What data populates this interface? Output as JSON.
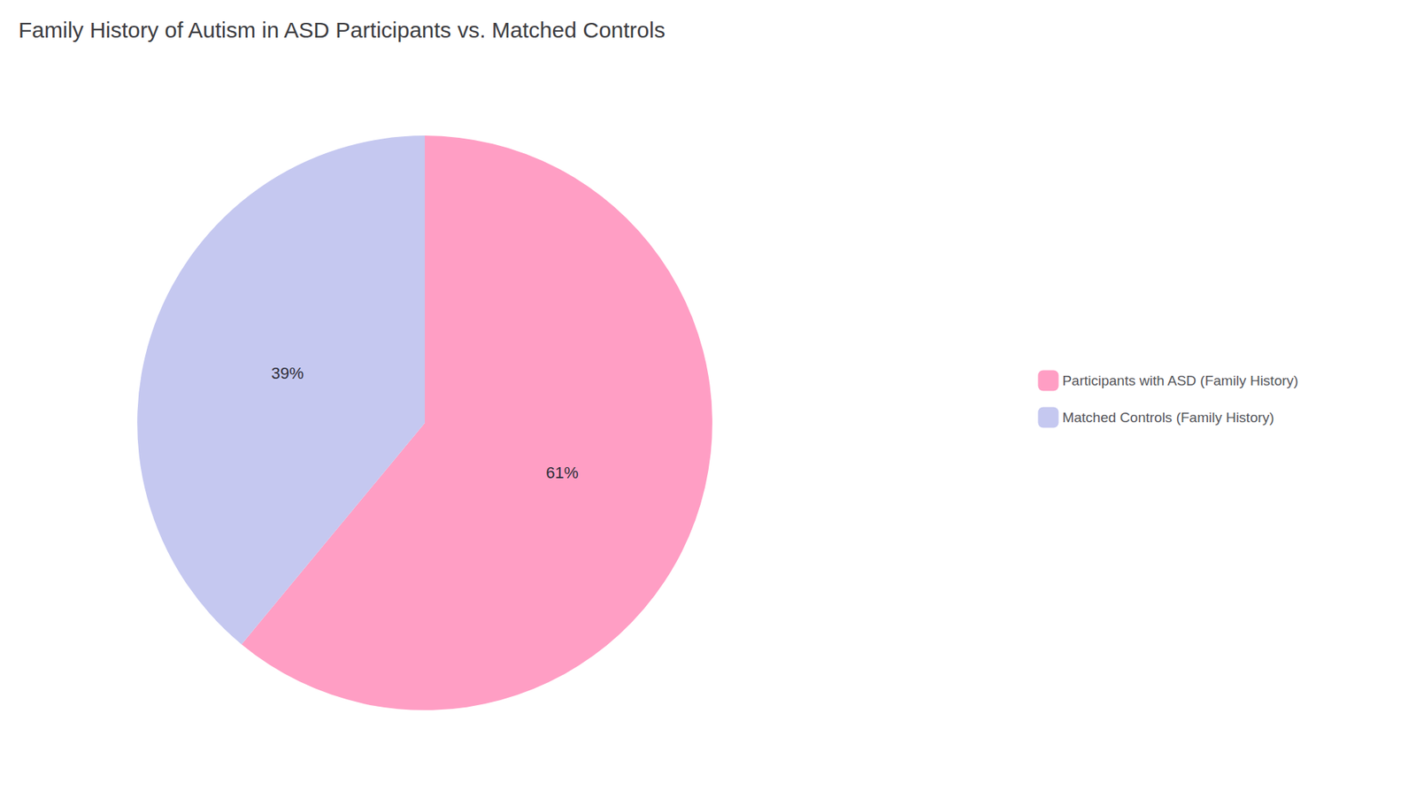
{
  "chart_data": {
    "type": "pie",
    "title": "Family History of Autism in ASD Participants vs. Matched Controls",
    "categories": [
      "Participants with ASD (Family History)",
      "Matched Controls (Family History)"
    ],
    "values": [
      61,
      39
    ],
    "value_labels": [
      "61%",
      "39%"
    ],
    "colors": [
      "#FF9EC4",
      "#C5C8F0"
    ],
    "data_labels": true,
    "legend": "right"
  }
}
